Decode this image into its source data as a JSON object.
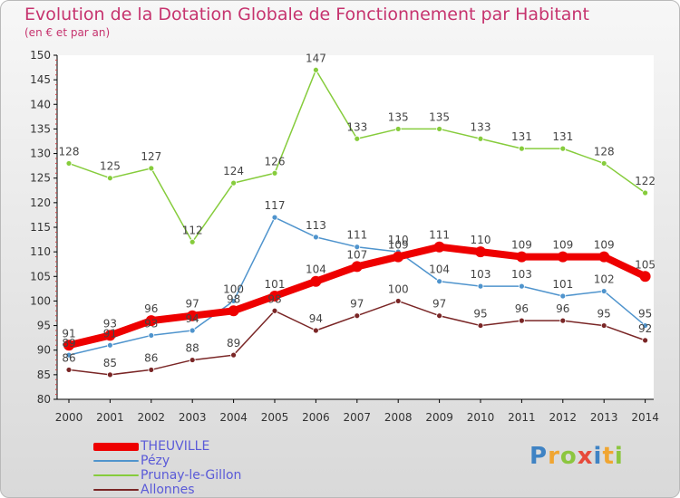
{
  "header": {
    "title": "Evolution de la Dotation Globale de Fonctionnement par Habitant",
    "subtitle": "(en € et par an)"
  },
  "logo": {
    "text": "Proxiti"
  },
  "chart_data": {
    "type": "line",
    "title": "Evolution de la Dotation Globale de Fonctionnement par Habitant",
    "subtitle": "(en € et par an)",
    "x": [
      "2000",
      "2001",
      "2002",
      "2003",
      "2004",
      "2005",
      "2006",
      "2007",
      "2008",
      "2009",
      "2010",
      "2011",
      "2012",
      "2013",
      "2014"
    ],
    "ylim": [
      80,
      150
    ],
    "yticks": [
      80,
      85,
      90,
      95,
      100,
      105,
      110,
      115,
      120,
      125,
      130,
      135,
      140,
      145,
      150
    ],
    "grid": false,
    "legend_position": "bottom-left",
    "series": [
      {
        "name": "Prunay-le-Gillon",
        "color": "#86cc3c",
        "values": [
          128,
          125,
          127,
          112,
          124,
          126,
          147,
          133,
          135,
          135,
          133,
          131,
          131,
          128,
          122
        ]
      },
      {
        "name": "Pézy",
        "color": "#4f94cd",
        "values": [
          89,
          91,
          93,
          94,
          100,
          117,
          113,
          111,
          110,
          104,
          103,
          103,
          101,
          102,
          95
        ]
      },
      {
        "name": "Allonnes",
        "color": "#7a2626",
        "values": [
          86,
          85,
          86,
          88,
          89,
          98,
          94,
          97,
          100,
          97,
          95,
          96,
          96,
          95,
          92
        ]
      },
      {
        "name": "THEUVILLE",
        "color": "#ee0000",
        "values": [
          91,
          93,
          96,
          97,
          98,
          101,
          104,
          107,
          109,
          111,
          110,
          109,
          109,
          109,
          105
        ]
      }
    ],
    "legend_order": [
      "THEUVILLE",
      "Pézy",
      "Prunay-le-Gillon",
      "Allonnes"
    ]
  }
}
